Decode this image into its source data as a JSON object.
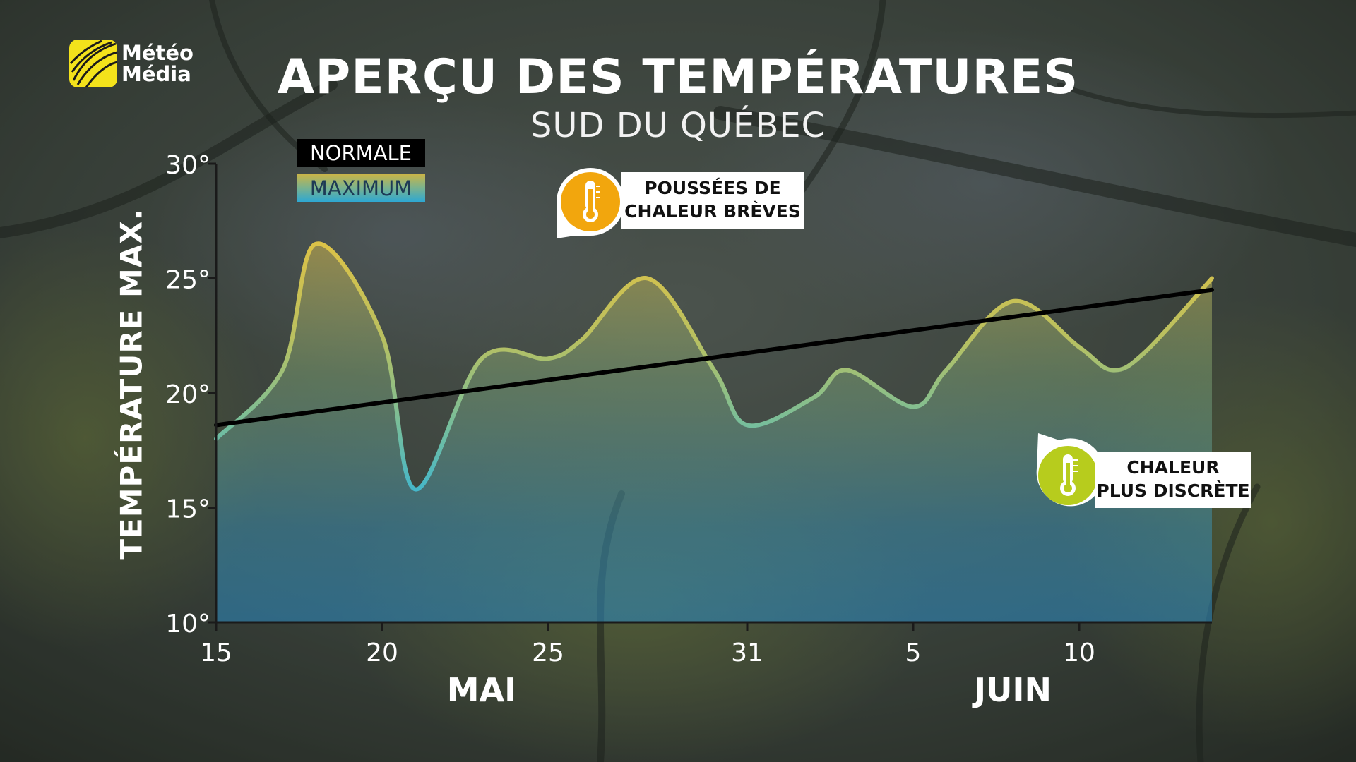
{
  "brand": {
    "line1": "Météo",
    "line2": "Média",
    "accent": "#f3e21b"
  },
  "title": "APERÇU DES TEMPÉRATURES",
  "subtitle": "SUD DU QUÉBEC",
  "legend": {
    "normal": "NORMALE",
    "maximum": "MAXIMUM"
  },
  "callouts": [
    {
      "text_line1": "POUSSÉES DE",
      "text_line2": "CHALEUR BRÈVES",
      "icon": "thermometer-icon",
      "color": "#f2a60d"
    },
    {
      "text_line1": "CHALEUR",
      "text_line2": "PLUS DISCRÈTE",
      "icon": "thermometer-icon",
      "color": "#b7cc1d"
    }
  ],
  "chart_data": {
    "type": "area",
    "ylabel": "TEMPÉRATURE MAX.",
    "ylim": [
      10,
      30
    ],
    "y_ticks": [
      {
        "value": 30,
        "label": "30°"
      },
      {
        "value": 25,
        "label": "25°"
      },
      {
        "value": 20,
        "label": "20°"
      },
      {
        "value": 15,
        "label": "15°"
      },
      {
        "value": 10,
        "label": "10°"
      }
    ],
    "x_ticks": [
      {
        "date": "2023-05-15",
        "label": "15"
      },
      {
        "date": "2023-05-20",
        "label": "20"
      },
      {
        "date": "2023-05-25",
        "label": "25"
      },
      {
        "date": "2023-05-31",
        "label": "31"
      },
      {
        "date": "2023-06-05",
        "label": "5"
      },
      {
        "date": "2023-06-10",
        "label": "10"
      }
    ],
    "month_labels": [
      {
        "label": "MAI",
        "date": "2023-05-23"
      },
      {
        "label": "JUIN",
        "date": "2023-06-08"
      }
    ],
    "xlim": [
      "2023-05-15",
      "2023-06-14"
    ],
    "series": [
      {
        "name": "MAXIMUM",
        "points": [
          {
            "date": "2023-05-15",
            "value": 18.0
          },
          {
            "date": "2023-05-17",
            "value": 21.0
          },
          {
            "date": "2023-05-18",
            "value": 26.5
          },
          {
            "date": "2023-05-20",
            "value": 22.5
          },
          {
            "date": "2023-05-21",
            "value": 15.8
          },
          {
            "date": "2023-05-23",
            "value": 21.5
          },
          {
            "date": "2023-05-25",
            "value": 21.5
          },
          {
            "date": "2023-05-26",
            "value": 22.3
          },
          {
            "date": "2023-05-28",
            "value": 25.0
          },
          {
            "date": "2023-05-30",
            "value": 21.0
          },
          {
            "date": "2023-05-31",
            "value": 18.6
          },
          {
            "date": "2023-06-02",
            "value": 19.8
          },
          {
            "date": "2023-06-03",
            "value": 21.0
          },
          {
            "date": "2023-06-05",
            "value": 19.4
          },
          {
            "date": "2023-06-06",
            "value": 21.0
          },
          {
            "date": "2023-06-08",
            "value": 24.0
          },
          {
            "date": "2023-06-10",
            "value": 22.0
          },
          {
            "date": "2023-06-11",
            "value": 21.0
          },
          {
            "date": "2023-06-12",
            "value": 21.8
          },
          {
            "date": "2023-06-14",
            "value": 25.0
          }
        ]
      },
      {
        "name": "NORMALE",
        "points": [
          {
            "date": "2023-05-15",
            "value": 18.6
          },
          {
            "date": "2023-06-14",
            "value": 24.5
          }
        ],
        "color": "#000000"
      }
    ],
    "grid": false,
    "legend_position": "top-left"
  }
}
